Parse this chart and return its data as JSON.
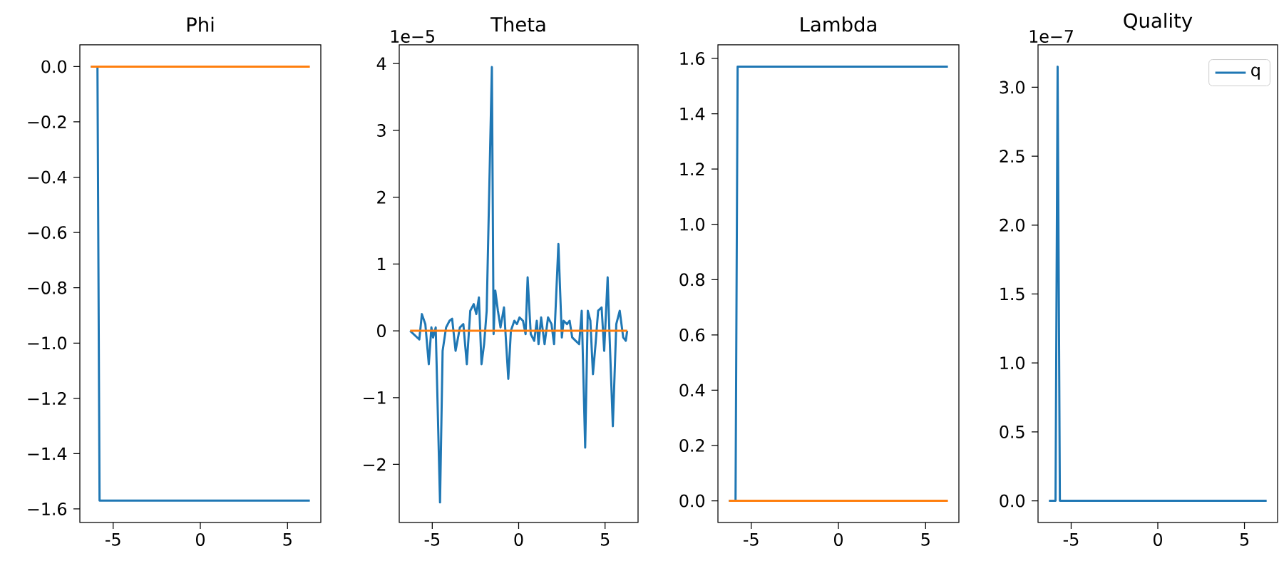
{
  "chart_data": [
    {
      "type": "line",
      "title": "Phi",
      "xlim": [
        -6.91,
        6.91
      ],
      "ylim": [
        -1.649,
        0.0785
      ],
      "xticks": [
        -5,
        0,
        5
      ],
      "yticks": [
        {
          "value": 0,
          "label": "0.0"
        },
        {
          "value": -0.2,
          "label": "−0.2"
        },
        {
          "value": -0.4,
          "label": "−0.4"
        },
        {
          "value": -0.6,
          "label": "−0.6"
        },
        {
          "value": -0.8,
          "label": "−0.8"
        },
        {
          "value": -1.0,
          "label": "−1.0"
        },
        {
          "value": -1.2,
          "label": "−1.2"
        },
        {
          "value": -1.4,
          "label": "−1.4"
        },
        {
          "value": -1.6,
          "label": "−1.6"
        }
      ],
      "series": [
        {
          "color": "#1f77b4",
          "x": [
            -6.28,
            -5.9,
            -5.78,
            6.28
          ],
          "values": [
            0,
            0,
            -1.57,
            -1.57
          ]
        },
        {
          "color": "#ff7f0e",
          "x": [
            -6.28,
            6.28
          ],
          "values": [
            0,
            0
          ]
        }
      ]
    },
    {
      "type": "line",
      "title": "Theta",
      "annotations": [
        "1e−5"
      ],
      "xlim": [
        -6.91,
        6.91
      ],
      "ylim": [
        -2.87,
        4.28
      ],
      "xticks": [
        -5,
        0,
        5
      ],
      "yticks": [
        {
          "value": -2,
          "label": "−2"
        },
        {
          "value": -1,
          "label": "−1"
        },
        0,
        1,
        2,
        3,
        4
      ],
      "series": [
        {
          "color": "#1f77b4",
          "x": [
            -6.28,
            -5.75,
            -5.6,
            -5.4,
            -5.2,
            -5.05,
            -4.95,
            -4.8,
            -4.55,
            -4.4,
            -4.2,
            -4.0,
            -3.85,
            -3.65,
            -3.4,
            -3.2,
            -3.0,
            -2.8,
            -2.6,
            -2.45,
            -2.3,
            -2.15,
            -2.0,
            -1.85,
            -1.55,
            -1.45,
            -1.35,
            -1.2,
            -1.05,
            -0.85,
            -0.6,
            -0.45,
            -0.25,
            -0.1,
            0.05,
            0.25,
            0.4,
            0.52,
            0.7,
            0.9,
            1.05,
            1.15,
            1.3,
            1.5,
            1.7,
            1.9,
            2.05,
            2.3,
            2.5,
            2.6,
            2.8,
            2.95,
            3.1,
            3.3,
            3.5,
            3.65,
            3.85,
            4.0,
            4.15,
            4.3,
            4.45,
            4.6,
            4.8,
            4.95,
            5.15,
            5.25,
            5.45,
            5.65,
            5.85,
            6.05,
            6.2,
            6.28
          ],
          "values": [
            0,
            -0.13,
            0.25,
            0.1,
            -0.5,
            0.05,
            -0.1,
            0.05,
            -2.57,
            -0.3,
            0.05,
            0.15,
            0.18,
            -0.3,
            0.05,
            0.1,
            -0.5,
            0.3,
            0.4,
            0.25,
            0.5,
            -0.5,
            -0.2,
            0.3,
            3.95,
            -0.05,
            0.6,
            0.3,
            0.05,
            0.35,
            -0.72,
            0.0,
            0.15,
            0.1,
            0.2,
            0.15,
            -0.05,
            0.8,
            -0.05,
            -0.15,
            0.15,
            -0.2,
            0.2,
            -0.2,
            0.2,
            0.1,
            -0.2,
            1.3,
            -0.1,
            0.15,
            0.1,
            0.15,
            -0.1,
            -0.15,
            -0.2,
            0.3,
            -1.75,
            0.3,
            0.15,
            -0.65,
            -0.2,
            0.3,
            0.35,
            -0.3,
            0.8,
            0.0,
            -1.43,
            0.1,
            0.3,
            -0.1,
            -0.15,
            0
          ]
        },
        {
          "color": "#ff7f0e",
          "x": [
            -6.28,
            6.28
          ],
          "values": [
            0,
            0
          ]
        }
      ]
    },
    {
      "type": "line",
      "title": "Lambda",
      "xlim": [
        -6.91,
        6.91
      ],
      "ylim": [
        -0.0785,
        1.649
      ],
      "xticks": [
        -5,
        0,
        5
      ],
      "yticks": [
        {
          "value": 0,
          "label": "0.0"
        },
        0.2,
        0.4,
        0.6,
        0.8,
        {
          "value": 1.0,
          "label": "1.0"
        },
        1.2,
        1.4,
        1.6
      ],
      "series": [
        {
          "color": "#1f77b4",
          "x": [
            -6.28,
            -5.9,
            -5.78,
            6.28
          ],
          "values": [
            0,
            0,
            1.57,
            1.57
          ]
        },
        {
          "color": "#ff7f0e",
          "x": [
            -6.28,
            6.28
          ],
          "values": [
            0,
            0
          ]
        }
      ]
    },
    {
      "type": "line",
      "title": "Quality",
      "annotations": [
        "1e−7"
      ],
      "legend": "top right",
      "xlim": [
        -6.91,
        6.91
      ],
      "ylim": [
        -0.1575,
        3.3075
      ],
      "xticks": [
        -5,
        0,
        5
      ],
      "yticks": [
        {
          "value": 0,
          "label": "0.0"
        },
        0.5,
        {
          "value": 1.0,
          "label": "1.0"
        },
        1.5,
        {
          "value": 2.0,
          "label": "2.0"
        },
        2.5,
        {
          "value": 3.0,
          "label": "3.0"
        }
      ],
      "series": [
        {
          "name": "q",
          "color": "#1f77b4",
          "x": [
            -6.28,
            -5.9,
            -5.78,
            -5.65,
            6.28
          ],
          "values": [
            0,
            0,
            3.15,
            0,
            0
          ]
        }
      ]
    }
  ]
}
